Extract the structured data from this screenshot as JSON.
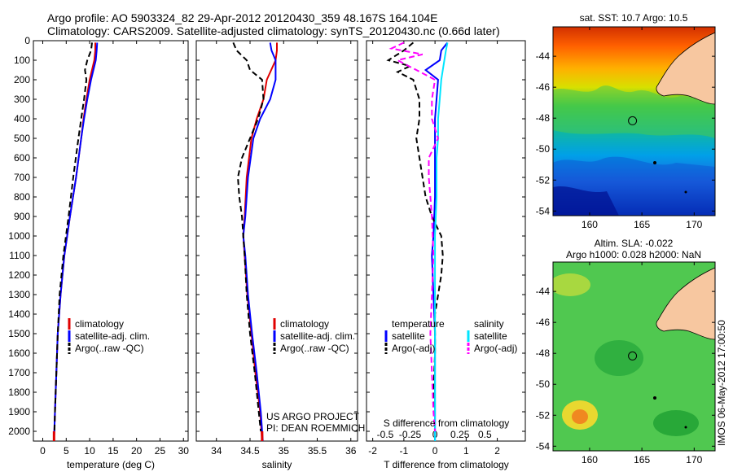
{
  "title_line1": "Argo profile: AO 5903324_82 29-Apr-2012 20120430_359 48.167S 164.104E",
  "title_line2": "Climatology: CARS2009. Satellite-adjusted climatology: synTS_20120430.nc (0.66d later)",
  "watermark": "IMOS 06-May-2012 17:00:50",
  "colors": {
    "climatology": "#e00000",
    "satellite": "#0000ff",
    "argo": "#000000",
    "salinity_sat": "#00e5ff",
    "salinity_argo": "#ff00ff",
    "land": "#f7c7a0"
  },
  "chart_data": [
    {
      "type": "line",
      "xlabel": "temperature (deg C)",
      "xlim": [
        -2,
        31
      ],
      "xticks": [
        0,
        5,
        10,
        15,
        20,
        25,
        30
      ],
      "ylim": [
        2050,
        0
      ],
      "yticks": [
        0,
        100,
        200,
        300,
        400,
        500,
        600,
        700,
        800,
        900,
        1000,
        1100,
        1200,
        1300,
        1400,
        1500,
        1600,
        1700,
        1800,
        1900,
        2000
      ],
      "legend": [
        "climatology",
        "satellite-adj. clim.",
        "Argo(..raw -QC)"
      ],
      "series": [
        {
          "name": "climatology",
          "depth": [
            10,
            50,
            100,
            200,
            300,
            400,
            500,
            700,
            900,
            1100,
            1300,
            1500,
            1700,
            1900,
            2050
          ],
          "values": [
            11.2,
            11.2,
            11.0,
            10.0,
            9.3,
            8.7,
            8.2,
            7.1,
            5.8,
            4.6,
            3.8,
            3.2,
            2.9,
            2.6,
            2.4
          ]
        },
        {
          "name": "satellite-adj. clim.",
          "depth": [
            10,
            50,
            100,
            200,
            300,
            400,
            500,
            700,
            900,
            1100,
            1300,
            1500,
            1700,
            1900,
            2050
          ],
          "values": [
            11.6,
            11.5,
            11.3,
            10.3,
            9.5,
            8.8,
            8.2,
            7.1,
            5.8,
            4.6,
            3.8,
            3.2,
            2.9,
            2.6,
            2.4
          ]
        },
        {
          "name": "Argo(..raw -QC)",
          "depth": [
            10,
            50,
            100,
            150,
            200,
            300,
            400,
            500,
            700,
            900,
            1100,
            1300,
            1500,
            1700,
            1900,
            2000
          ],
          "values": [
            10.5,
            10.3,
            9.5,
            9.0,
            9.3,
            8.8,
            8.2,
            7.6,
            6.5,
            5.5,
            4.4,
            3.6,
            3.2,
            2.9,
            2.6,
            2.5
          ]
        }
      ]
    },
    {
      "type": "line",
      "xlabel": "salinity",
      "xlim": [
        33.7,
        36.1
      ],
      "xticks": [
        34,
        34.5,
        35,
        35.5,
        36
      ],
      "ylim": [
        2050,
        0
      ],
      "legend": [
        "climatology",
        "satellite-adj. clim.",
        "Argo(..raw -QC)"
      ],
      "annotation": [
        "US ARGO PROJECT",
        "PI: DEAN ROEMMICH"
      ],
      "series": [
        {
          "name": "climatology",
          "depth": [
            10,
            50,
            100,
            200,
            300,
            400,
            500,
            700,
            900,
            1000,
            1100,
            1300,
            1500,
            1700,
            1900,
            2050
          ],
          "values": [
            34.9,
            34.9,
            34.88,
            34.75,
            34.7,
            34.6,
            34.52,
            34.45,
            34.42,
            34.4,
            34.42,
            34.46,
            34.52,
            34.58,
            34.65,
            34.68
          ]
        },
        {
          "name": "satellite-adj. clim.",
          "depth": [
            10,
            50,
            100,
            200,
            300,
            400,
            500,
            700,
            900,
            1000,
            1100,
            1300,
            1500,
            1700,
            1900,
            2050
          ],
          "values": [
            34.8,
            34.82,
            34.88,
            34.88,
            34.8,
            34.65,
            34.55,
            34.47,
            34.43,
            34.4,
            34.43,
            34.47,
            34.53,
            34.6,
            34.66,
            34.69
          ]
        },
        {
          "name": "Argo(..raw -QC)",
          "depth": [
            10,
            50,
            100,
            150,
            200,
            300,
            400,
            500,
            600,
            700,
            800,
            900,
            1000,
            1100,
            1300,
            1500,
            1700,
            1900,
            2000
          ],
          "values": [
            34.25,
            34.3,
            34.45,
            34.5,
            34.68,
            34.7,
            34.62,
            34.5,
            34.38,
            34.32,
            34.34,
            34.38,
            34.4,
            34.42,
            34.45,
            34.5,
            34.57,
            34.63,
            34.66
          ]
        }
      ]
    },
    {
      "type": "line",
      "xlabel": "T difference from climatology",
      "xlabel_top": "S difference from climatology",
      "xlim": [
        -2.2,
        2.9
      ],
      "xticks": [
        -2,
        -1,
        0,
        1,
        2
      ],
      "xticks_top_labels": [
        "-0.5",
        "-0.25",
        "0",
        "0.25",
        "0.5"
      ],
      "xticks_top_pos": [
        -1.6,
        -0.8,
        0,
        0.8,
        1.6
      ],
      "ylim": [
        2050,
        0
      ],
      "legend_titles": [
        "temperature",
        "salinity"
      ],
      "legend": [
        "satellite",
        "Argo(-adj)",
        "satellite",
        "Argo(-adj)"
      ],
      "series": [
        {
          "name": "temperature satellite",
          "depth": [
            10,
            50,
            100,
            150,
            200,
            300,
            400,
            600,
            800,
            1000,
            1100,
            1300,
            1500,
            1700,
            1900,
            2050
          ],
          "values": [
            0.4,
            0.2,
            0.15,
            -0.3,
            0.1,
            0.05,
            0.0,
            0.0,
            0.0,
            -0.05,
            -0.1,
            -0.05,
            0.0,
            0.0,
            0.0,
            0.0
          ]
        },
        {
          "name": "temperature Argo(-adj)",
          "depth": [
            10,
            50,
            100,
            130,
            160,
            200,
            300,
            400,
            500,
            700,
            800,
            900,
            1000,
            1100,
            1200,
            1400,
            1600,
            1800,
            2000
          ],
          "values": [
            -0.7,
            -1.0,
            -1.5,
            -0.8,
            -1.2,
            -0.7,
            -0.5,
            -0.5,
            -0.6,
            -0.4,
            -0.3,
            -0.1,
            0.2,
            0.25,
            0.2,
            0.0,
            0.0,
            -0.05,
            0.0
          ]
        },
        {
          "name": "salinity satellite",
          "depth": [
            10,
            50,
            100,
            200,
            300,
            400,
            500,
            600,
            800,
            1000,
            1200,
            1500,
            1800,
            2050
          ],
          "values": [
            0.4,
            0.35,
            0.3,
            0.2,
            0.15,
            0.1,
            0.1,
            0.05,
            0.05,
            0.0,
            0.0,
            0.0,
            0.0,
            0.0
          ]
        },
        {
          "name": "salinity Argo(-adj)",
          "depth": [
            10,
            40,
            70,
            100,
            200,
            300,
            400,
            500,
            600,
            700,
            900,
            1100,
            1300,
            1500,
            1700,
            1900,
            2000
          ],
          "values": [
            -1.0,
            -1.4,
            -0.4,
            -1.2,
            0.0,
            -0.1,
            -0.1,
            0.1,
            -0.2,
            -0.2,
            -0.1,
            -0.05,
            -0.1,
            -0.15,
            -0.1,
            -0.05,
            0.0
          ]
        }
      ]
    },
    {
      "type": "heatmap",
      "title": "sat. SST: 10.7 Argo: 10.5",
      "xlim": [
        156.5,
        172
      ],
      "ylim": [
        -54.3,
        -42.1
      ],
      "xticks": [
        160,
        165,
        170
      ],
      "yticks": [
        -44,
        -46,
        -48,
        -50,
        -52,
        -54
      ],
      "marker": {
        "lon": 164.104,
        "lat": -48.167
      }
    },
    {
      "type": "heatmap",
      "title_line1": "Altim. SLA: -0.022",
      "title_line2": "Argo h1000: 0.028 h2000: NaN",
      "xlim": [
        156.5,
        172
      ],
      "ylim": [
        -54.3,
        -42.1
      ],
      "xticks": [
        160,
        165,
        170
      ],
      "yticks": [
        -44,
        -46,
        -48,
        -50,
        -52,
        -54
      ],
      "marker": {
        "lon": 164.104,
        "lat": -48.167
      }
    }
  ]
}
